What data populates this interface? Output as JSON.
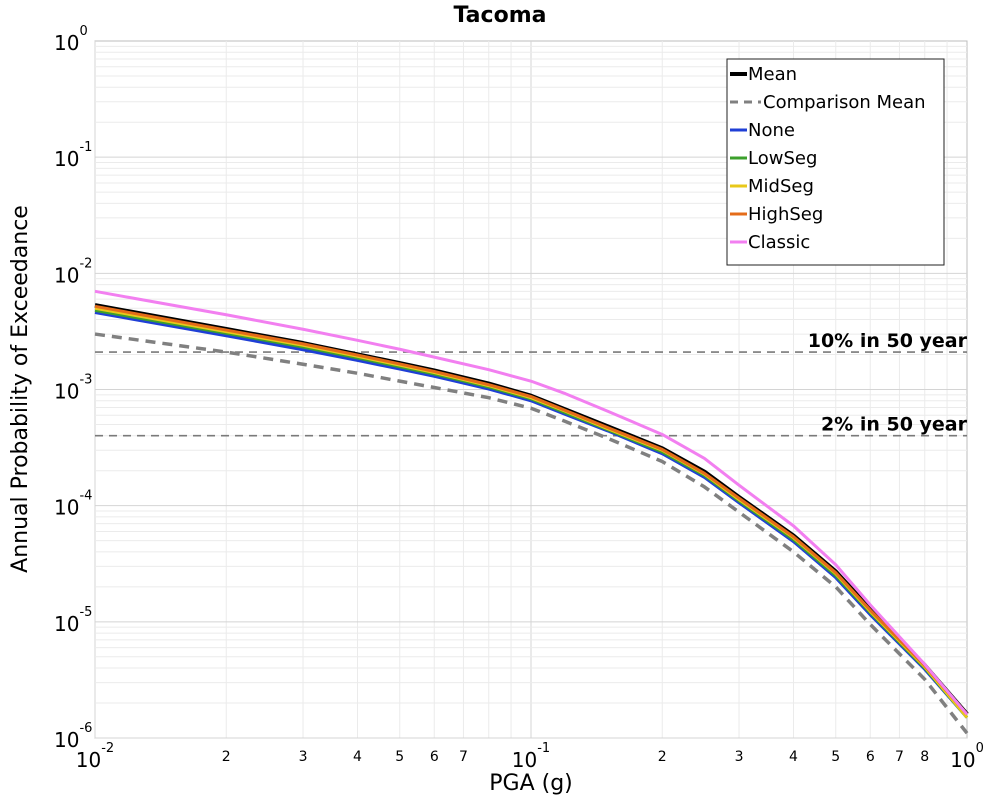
{
  "chart_data": {
    "type": "line",
    "title": "Tacoma",
    "xlabel": "PGA (g)",
    "ylabel": "Annual Probability of Exceedance",
    "xscale": "log",
    "yscale": "log",
    "xlim": [
      0.01,
      1.0
    ],
    "ylim": [
      1e-06,
      1.0
    ],
    "grid": true,
    "legend_position": "top-right",
    "x_major_ticks": [
      {
        "base": "10",
        "exp": "-2",
        "value": 0.01
      },
      {
        "base": "10",
        "exp": "-1",
        "value": 0.1
      },
      {
        "base": "10",
        "exp": "0",
        "value": 1.0
      }
    ],
    "x_minor_ticks": [
      {
        "label": "2",
        "value": 0.02
      },
      {
        "label": "3",
        "value": 0.03
      },
      {
        "label": "4",
        "value": 0.04
      },
      {
        "label": "5",
        "value": 0.05
      },
      {
        "label": "6",
        "value": 0.06
      },
      {
        "label": "7",
        "value": 0.07
      },
      {
        "label": "2",
        "value": 0.2
      },
      {
        "label": "3",
        "value": 0.3
      },
      {
        "label": "4",
        "value": 0.4
      },
      {
        "label": "5",
        "value": 0.5
      },
      {
        "label": "6",
        "value": 0.6
      },
      {
        "label": "7",
        "value": 0.7
      },
      {
        "label": "8",
        "value": 0.8
      }
    ],
    "y_major_ticks": [
      {
        "base": "10",
        "exp": "0",
        "value": 1.0
      },
      {
        "base": "10",
        "exp": "-1",
        "value": 0.1
      },
      {
        "base": "10",
        "exp": "-2",
        "value": 0.01
      },
      {
        "base": "10",
        "exp": "-3",
        "value": 0.001
      },
      {
        "base": "10",
        "exp": "-4",
        "value": 0.0001
      },
      {
        "base": "10",
        "exp": "-5",
        "value": 1e-05
      },
      {
        "base": "10",
        "exp": "-6",
        "value": 1e-06
      }
    ],
    "hlines": [
      {
        "label": "10% in 50 year",
        "value": 0.0021
      },
      {
        "label": "2% in 50 year",
        "value": 0.0004
      }
    ],
    "series": [
      {
        "name": "Mean",
        "color": "#000000",
        "dash": "solid",
        "width": 4.5,
        "x": [
          0.01,
          0.02,
          0.03,
          0.04,
          0.05,
          0.06,
          0.08,
          0.1,
          0.12,
          0.15,
          0.2,
          0.25,
          0.3,
          0.4,
          0.5,
          0.6,
          0.8,
          1.0
        ],
        "y": [
          0.0053,
          0.0033,
          0.0025,
          0.002,
          0.00168,
          0.00145,
          0.00112,
          0.00088,
          0.00067,
          0.00048,
          0.00031,
          0.000195,
          0.000118,
          5.5e-05,
          2.7e-05,
          1.28e-05,
          4.2e-06,
          1.6e-06
        ]
      },
      {
        "name": "Comparison Mean",
        "color": "#808080",
        "dash": "dashed",
        "width": 3.5,
        "x": [
          0.01,
          0.02,
          0.03,
          0.04,
          0.05,
          0.06,
          0.08,
          0.1,
          0.12,
          0.15,
          0.2,
          0.25,
          0.3,
          0.4,
          0.5,
          0.6,
          0.8,
          1.0
        ],
        "y": [
          0.003,
          0.0021,
          0.00165,
          0.00138,
          0.00118,
          0.00104,
          0.00085,
          0.00069,
          0.00053,
          0.00038,
          0.00024,
          0.000145,
          8.8e-05,
          4e-05,
          2e-05,
          9.5e-06,
          3.2e-06,
          1.1e-06
        ]
      },
      {
        "name": "None",
        "color": "#1f3fd6",
        "dash": "solid",
        "width": 3,
        "x": [
          0.01,
          0.02,
          0.03,
          0.04,
          0.05,
          0.06,
          0.08,
          0.1,
          0.12,
          0.15,
          0.2,
          0.25,
          0.3,
          0.4,
          0.5,
          0.6,
          0.8,
          1.0
        ],
        "y": [
          0.0046,
          0.0029,
          0.0022,
          0.00178,
          0.0015,
          0.0013,
          0.00101,
          0.0008,
          0.00061,
          0.00044,
          0.00028,
          0.000175,
          0.000106,
          4.9e-05,
          2.4e-05,
          1.15e-05,
          3.9e-06,
          1.5e-06
        ]
      },
      {
        "name": "LowSeg",
        "color": "#3ca02c",
        "dash": "solid",
        "width": 3,
        "x": [
          0.01,
          0.02,
          0.03,
          0.04,
          0.05,
          0.06,
          0.08,
          0.1,
          0.12,
          0.15,
          0.2,
          0.25,
          0.3,
          0.4,
          0.5,
          0.6,
          0.8,
          1.0
        ],
        "y": [
          0.0048,
          0.00305,
          0.00232,
          0.00187,
          0.00157,
          0.00136,
          0.00105,
          0.00083,
          0.00063,
          0.00045,
          0.00029,
          0.000182,
          0.00011,
          5.1e-05,
          2.5e-05,
          1.2e-05,
          4e-06,
          1.5e-06
        ]
      },
      {
        "name": "MidSeg",
        "color": "#e8c81a",
        "dash": "solid",
        "width": 3,
        "x": [
          0.01,
          0.02,
          0.03,
          0.04,
          0.05,
          0.06,
          0.08,
          0.1,
          0.12,
          0.15,
          0.2,
          0.25,
          0.3,
          0.4,
          0.5,
          0.6,
          0.8,
          1.0
        ],
        "y": [
          0.005,
          0.00315,
          0.0024,
          0.00193,
          0.00162,
          0.0014,
          0.00108,
          0.00085,
          0.00065,
          0.00046,
          0.0003,
          0.000187,
          0.000113,
          5.3e-05,
          2.6e-05,
          1.23e-05,
          4.1e-06,
          1.5e-06
        ]
      },
      {
        "name": "HighSeg",
        "color": "#e46c1a",
        "dash": "solid",
        "width": 3,
        "x": [
          0.01,
          0.02,
          0.03,
          0.04,
          0.05,
          0.06,
          0.08,
          0.1,
          0.12,
          0.15,
          0.2,
          0.25,
          0.3,
          0.4,
          0.5,
          0.6,
          0.8,
          1.0
        ],
        "y": [
          0.0052,
          0.00325,
          0.00247,
          0.00198,
          0.00166,
          0.00143,
          0.0011,
          0.00087,
          0.00066,
          0.00047,
          0.000305,
          0.00019,
          0.000116,
          5.4e-05,
          2.65e-05,
          1.26e-05,
          4.2e-06,
          1.6e-06
        ]
      },
      {
        "name": "Classic",
        "color": "#f27ff0",
        "dash": "solid",
        "width": 3,
        "x": [
          0.01,
          0.02,
          0.03,
          0.04,
          0.05,
          0.06,
          0.08,
          0.1,
          0.12,
          0.15,
          0.2,
          0.25,
          0.3,
          0.4,
          0.5,
          0.6,
          0.8,
          1.0
        ],
        "y": [
          0.007,
          0.0044,
          0.0033,
          0.00265,
          0.00222,
          0.0019,
          0.00148,
          0.00118,
          0.00092,
          0.00065,
          0.00041,
          0.000255,
          0.00015,
          6.7e-05,
          3.1e-05,
          1.4e-05,
          4.3e-06,
          1.6e-06
        ]
      }
    ]
  }
}
